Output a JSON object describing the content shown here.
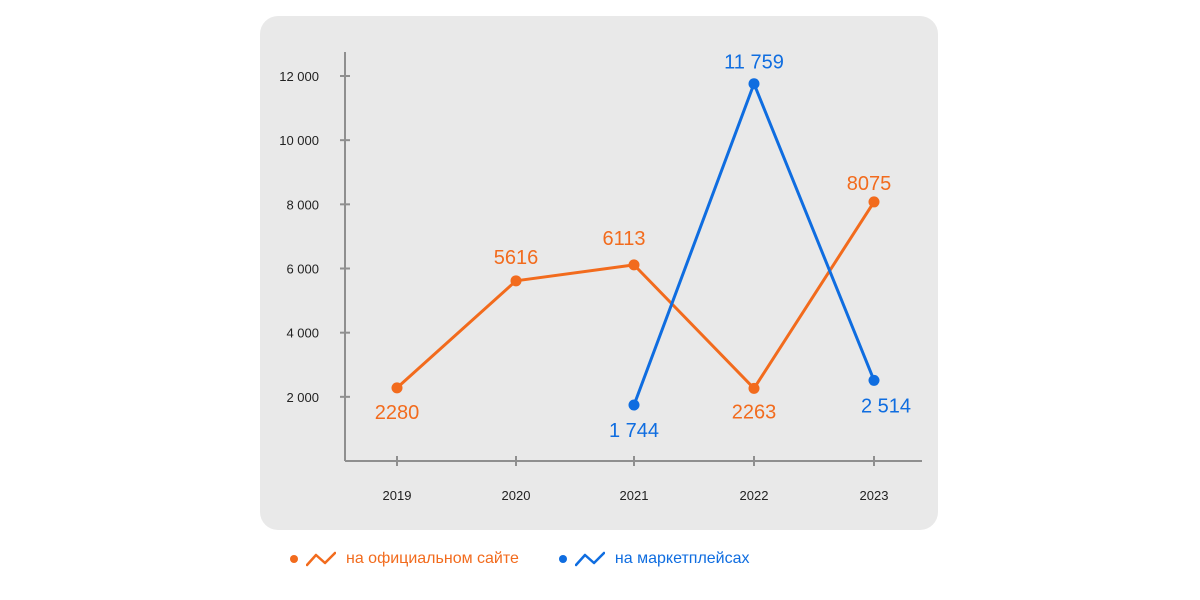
{
  "chart_data": {
    "type": "line",
    "categories": [
      "2019",
      "2020",
      "2021",
      "2022",
      "2023"
    ],
    "ylim": [
      0,
      13000
    ],
    "yticks": [
      2000,
      4000,
      6000,
      8000,
      10000,
      12000
    ],
    "ytick_labels": [
      "2 000",
      "4 000",
      "6 000",
      "8 000",
      "10 000",
      "12 000"
    ],
    "grid": false,
    "legend_position": "bottom",
    "series": [
      {
        "name": "на официальном сайте",
        "color": "#f26b1d",
        "values": [
          2280,
          5616,
          6113,
          2263,
          8075
        ],
        "labels": [
          "2280",
          "5616",
          "6113",
          "2263",
          "8075"
        ]
      },
      {
        "name": "на маркетплейсах",
        "color": "#0f6de0",
        "values": [
          null,
          null,
          1744,
          11759,
          2514
        ],
        "labels": [
          "",
          "",
          "1 744",
          "11 759",
          "2 514"
        ]
      }
    ]
  }
}
